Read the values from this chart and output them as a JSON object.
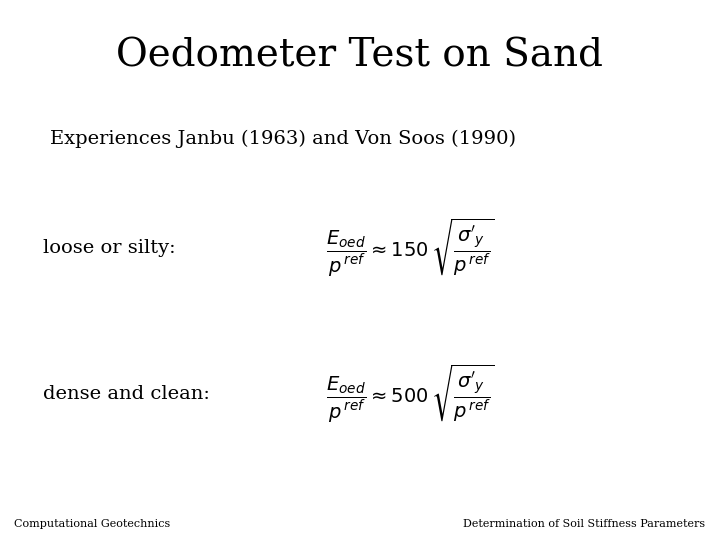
{
  "title": "Oedometer Test on Sand",
  "subtitle": "Experiences Janbu (1963) and Von Soos (1990)",
  "label1": "loose or silty:",
  "label2": "dense and clean:",
  "footer_left": "Computational Geotechnics",
  "footer_right": "Determination of Soil Stiffness Parameters",
  "bg_color": "#ffffff",
  "text_color": "#000000",
  "title_fontsize": 28,
  "subtitle_fontsize": 14,
  "label_fontsize": 14,
  "footer_fontsize": 8
}
